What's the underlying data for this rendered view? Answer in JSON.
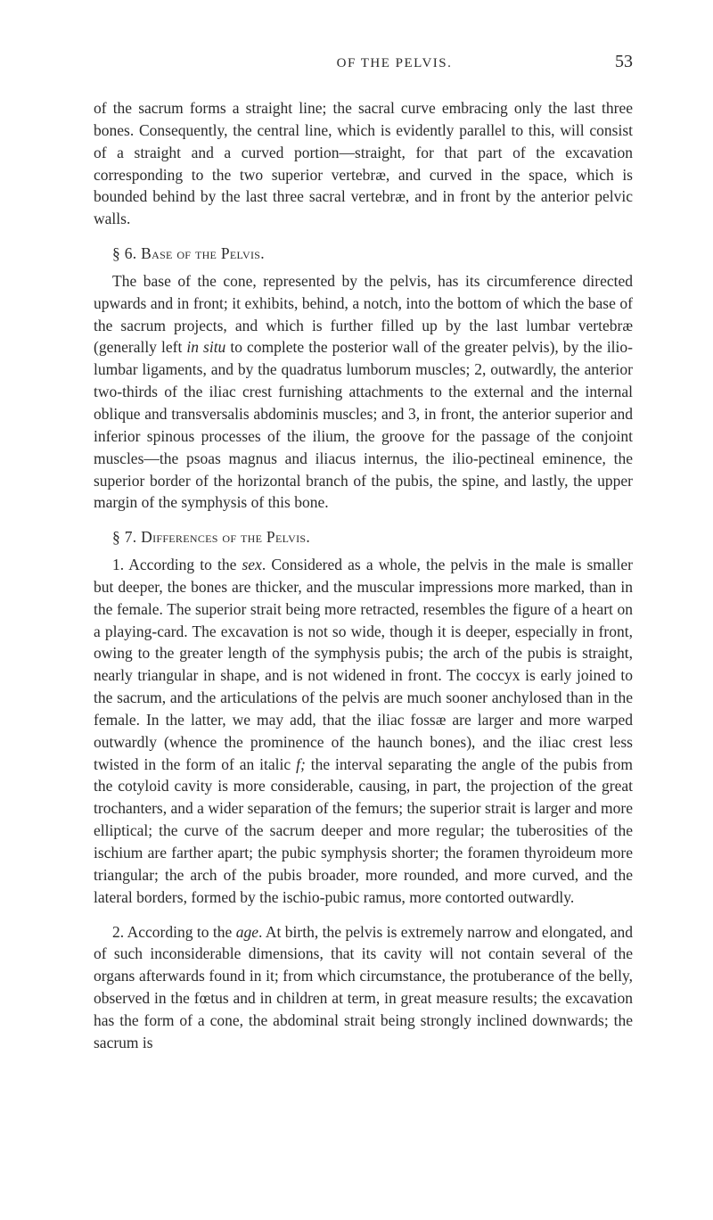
{
  "header": {
    "running_head": "OF THE PELVIS.",
    "page_number": "53"
  },
  "para_intro": "of the sacrum forms a straight line; the sacral curve embracing only the last three bones. Consequently, the central line, which is evidently parallel to this, will consist of a straight and a curved portion—straight, for that part of the excavation corresponding to the two superior vertebræ, and curved in the space, which is bounded behind by the last three sacral vertebræ, and in front by the anterior pelvic walls.",
  "section6": {
    "heading": "§ 6. Base of the Pelvis.",
    "para_pre": "The base of the cone, represented by the pelvis, has its circumference directed upwards and in front; it exhibits, behind, a notch, into the bottom of which the base of the sacrum projects, and which is further filled up by the last lumbar vertebræ (generally left ",
    "ital1": "in situ",
    "para_post": " to complete the posterior wall of the greater pelvis), by the ilio-lumbar ligaments, and by the quadratus lumborum muscles; 2, outwardly, the anterior two-thirds of the iliac crest furnishing attachments to the external and the internal oblique and transversalis abdominis muscles; and 3, in front, the anterior superior and inferior spinous processes of the ilium, the groove for the passage of the conjoint muscles—the psoas magnus and iliacus internus, the ilio-pectineal eminence, the superior border of the horizontal branch of the pubis, the spine, and lastly, the upper margin of the symphysis of this bone."
  },
  "section7": {
    "heading": "§ 7. Differences of the Pelvis.",
    "p1": {
      "seg1": "1. According to the ",
      "ital_sex": "sex",
      "seg2": ". Considered as a whole, the pelvis in the male is smaller but deeper, the bones are thicker, and the muscular impressions more marked, than in the female. The superior strait being more retracted, resembles the figure of a heart on a playing-card. The excavation is not so wide, though it is deeper, especially in front, owing to the greater length of the symphysis pubis; the arch of the pubis is straight, nearly triangular in shape, and is not widened in front. The coccyx is early joined to the sacrum, and the articulations of the pelvis are much sooner anchylosed than in the female. In the latter, we may add, that the iliac fossæ are larger and more warped outwardly (whence the prominence of the haunch bones), and the iliac crest less twisted in the form of an italic ",
      "ital_f": "f;",
      "seg3": " the interval separating the angle of the pubis from the cotyloid cavity is more considerable, causing, in part, the projection of the great trochanters, and a wider separation of the femurs; the superior strait is larger and more elliptical; the curve of the sacrum deeper and more regular; the tuberosities of the ischium are farther apart; the pubic symphysis shorter; the foramen thyroideum more triangular; the arch of the pubis broader, more rounded, and more curved, and the lateral borders, formed by the ischio-pubic ramus, more contorted outwardly."
    },
    "p2": {
      "seg1": "2. According to the ",
      "ital_age": "age",
      "seg2": ". At birth, the pelvis is extremely narrow and elongated, and of such inconsiderable dimensions, that its cavity will not contain several of the organs afterwards found in it; from which circumstance, the protuberance of the belly, observed in the fœtus and in children at term, in great measure results; the excavation has the form of a cone, the abdominal strait being strongly inclined downwards; the sacrum is"
    }
  }
}
